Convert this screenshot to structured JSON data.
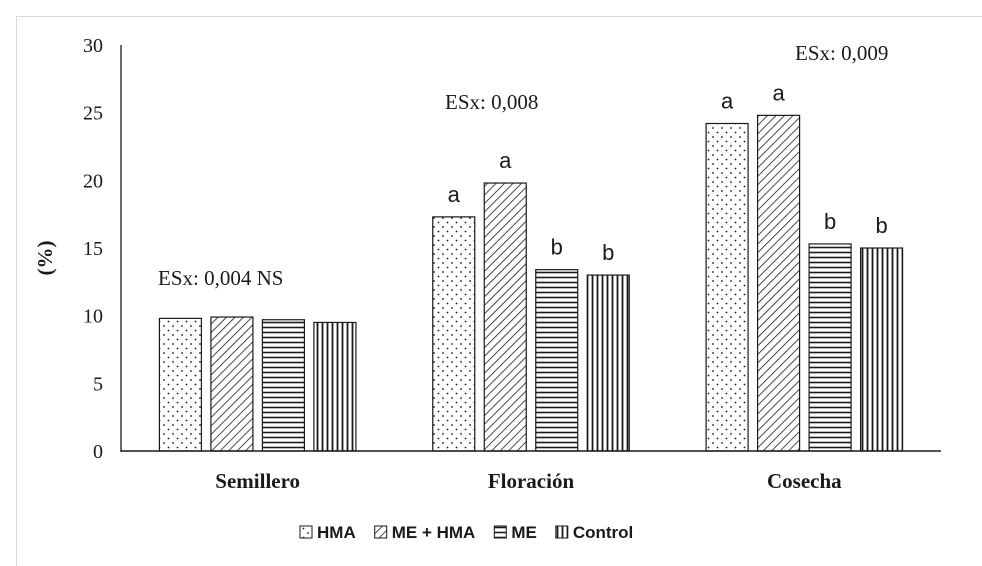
{
  "chart_data": {
    "type": "bar",
    "title": "",
    "xlabel": "",
    "ylabel": "(%)",
    "ylim": [
      0,
      30
    ],
    "yticks": [
      0,
      5,
      10,
      15,
      20,
      25,
      30
    ],
    "categories": [
      "Semillero",
      "Floración",
      "Cosecha"
    ],
    "series": [
      {
        "name": "HMA",
        "pattern": "dots",
        "values": [
          9.8,
          17.3,
          24.2
        ]
      },
      {
        "name": "ME + HMA",
        "pattern": "diagonal",
        "values": [
          9.9,
          19.8,
          24.8
        ]
      },
      {
        "name": "ME",
        "pattern": "horizontal",
        "values": [
          9.7,
          13.4,
          15.3
        ]
      },
      {
        "name": "Control",
        "pattern": "vertical",
        "values": [
          9.5,
          13.0,
          15.0
        ]
      }
    ],
    "significance_letters": [
      [
        "",
        "",
        "",
        ""
      ],
      [
        "a",
        "a",
        "b",
        "b"
      ],
      [
        "a",
        "a",
        "b",
        "b"
      ]
    ],
    "annotations": [
      "ESx: 0,004 NS",
      "ESx: 0,008",
      "ESx: 0,009"
    ],
    "legend_position": "bottom-center",
    "grid": false,
    "colors": {
      "bar_fill": "#ffffff",
      "bar_stroke": "#1a1a1a",
      "pattern": "#1a1a1a",
      "text": "#1a1a1a"
    }
  }
}
